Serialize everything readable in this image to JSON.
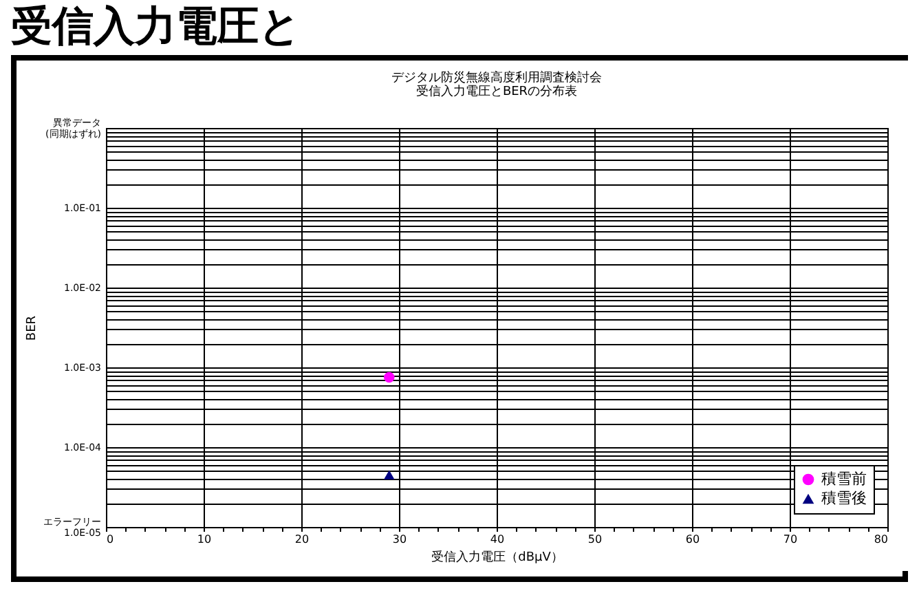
{
  "chart_data": {
    "type": "scatter",
    "title": "デジタル防災無線高度利用調査検討会",
    "subtitle": "受信入力電圧とBERの分布表",
    "xlabel": "受信入力電圧（dBμV）",
    "ylabel": "BER",
    "annotations": [
      "受信入力電圧と"
    ],
    "series": [
      {
        "name": "積雪前",
        "color": "#ff00ff",
        "marker": "circle",
        "x": [
          29
        ],
        "values": [
          0.00075
        ]
      },
      {
        "name": "積雪後",
        "color": "#000080",
        "marker": "triangle",
        "x": [
          29
        ],
        "values": [
          4.5e-05
        ]
      }
    ],
    "log": "y",
    "xlim": [
      0,
      80
    ],
    "ylim": [
      1e-05,
      1
    ],
    "xticks": [
      0,
      {
        "value": 2,
        "label": null
      },
      {
        "value": 4,
        "label": null
      },
      {
        "value": 6,
        "label": null
      },
      {
        "value": 8,
        "label": null
      },
      10,
      {
        "value": 12,
        "label": null
      },
      {
        "value": 14,
        "label": null
      },
      {
        "value": 16,
        "label": null
      },
      {
        "value": 18,
        "label": null
      },
      20,
      {
        "value": 22,
        "label": null
      },
      {
        "value": 24,
        "label": null
      },
      {
        "value": 26,
        "label": null
      },
      {
        "value": 28,
        "label": null
      },
      30,
      {
        "value": 32,
        "label": null
      },
      {
        "value": 34,
        "label": null
      },
      {
        "value": 36,
        "label": null
      },
      {
        "value": 38,
        "label": null
      },
      40,
      {
        "value": 42,
        "label": null
      },
      {
        "value": 44,
        "label": null
      },
      {
        "value": 46,
        "label": null
      },
      {
        "value": 48,
        "label": null
      },
      50,
      {
        "value": 52,
        "label": null
      },
      {
        "value": 54,
        "label": null
      },
      {
        "value": 56,
        "label": null
      },
      {
        "value": 58,
        "label": null
      },
      60,
      {
        "value": 62,
        "label": null
      },
      {
        "value": 64,
        "label": null
      },
      {
        "value": 66,
        "label": null
      },
      {
        "value": 68,
        "label": null
      },
      70,
      {
        "value": 72,
        "label": null
      },
      {
        "value": 74,
        "label": null
      },
      {
        "value": 76,
        "label": null
      },
      {
        "value": 78,
        "label": null
      },
      80
    ],
    "yticks": [
      {
        "value": 1e-05,
        "label": "エラーフリー\n1.0E-05"
      },
      {
        "value": 2e-05,
        "label": null
      },
      {
        "value": 3e-05,
        "label": null
      },
      {
        "value": 4e-05,
        "label": null
      },
      {
        "value": 5e-05,
        "label": null
      },
      {
        "value": 6e-05,
        "label": null
      },
      {
        "value": 7e-05,
        "label": null
      },
      {
        "value": 8e-05,
        "label": null
      },
      {
        "value": 9e-05,
        "label": null
      },
      {
        "value": 0.0001,
        "label": "1.0E-04"
      },
      {
        "value": 0.0002,
        "label": null
      },
      {
        "value": 0.0003,
        "label": null
      },
      {
        "value": 0.0004,
        "label": null
      },
      {
        "value": 0.0005,
        "label": null
      },
      {
        "value": 0.0006,
        "label": null
      },
      {
        "value": 0.0007,
        "label": null
      },
      {
        "value": 0.0008,
        "label": null
      },
      {
        "value": 0.0009,
        "label": null
      },
      {
        "value": 0.001,
        "label": "1.0E-03"
      },
      {
        "value": 0.002,
        "label": null
      },
      {
        "value": 0.003,
        "label": null
      },
      {
        "value": 0.004,
        "label": null
      },
      {
        "value": 0.005,
        "label": null
      },
      {
        "value": 0.006,
        "label": null
      },
      {
        "value": 0.007,
        "label": null
      },
      {
        "value": 0.008,
        "label": null
      },
      {
        "value": 0.009,
        "label": null
      },
      {
        "value": 0.01,
        "label": "1.0E-02"
      },
      {
        "value": 0.02,
        "label": null
      },
      {
        "value": 0.03,
        "label": null
      },
      {
        "value": 0.04,
        "label": null
      },
      {
        "value": 0.05,
        "label": null
      },
      {
        "value": 0.06,
        "label": null
      },
      {
        "value": 0.07,
        "label": null
      },
      {
        "value": 0.08,
        "label": null
      },
      {
        "value": 0.09,
        "label": null
      },
      {
        "value": 0.1,
        "label": "1.0E-01"
      },
      {
        "value": 0.2,
        "label": null
      },
      {
        "value": 0.3,
        "label": null
      },
      {
        "value": 0.4,
        "label": null
      },
      {
        "value": 0.5,
        "label": null
      },
      {
        "value": 0.6,
        "label": null
      },
      {
        "value": 0.7,
        "label": null
      },
      {
        "value": 0.8,
        "label": null
      },
      {
        "value": 0.9,
        "label": null
      },
      {
        "value": 1,
        "label": "異常データ\n(同期はずれ)"
      }
    ],
    "grid": "y_all_x_major",
    "legend": "bottom right"
  }
}
